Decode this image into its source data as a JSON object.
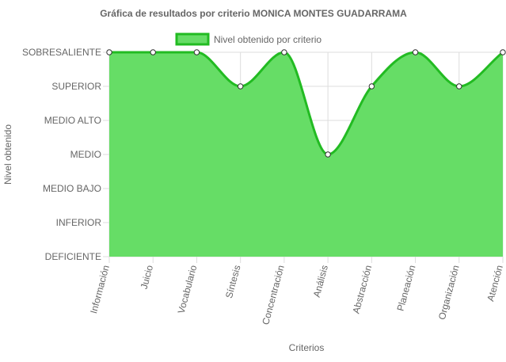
{
  "chart_data": {
    "type": "area",
    "title": "Gráfica de resultados por criterio MONICA MONTES GUADARRAMA",
    "xlabel": "Criterios",
    "ylabel": "Nivel obtenido",
    "categories": [
      "Información",
      "Juicio",
      "Vocabulario",
      "Síntesis",
      "Concentración",
      "Análisis",
      "Abstracción",
      "Planeación",
      "Organización",
      "Atención"
    ],
    "levels": [
      "DEFICIENTE",
      "INFERIOR",
      "MEDIO BAJO",
      "MEDIO",
      "MEDIO ALTO",
      "SUPERIOR",
      "SOBRESALIENTE"
    ],
    "ylim": [
      0,
      6
    ],
    "series": [
      {
        "name": "Nivel obtenido por criterio",
        "values": [
          6,
          6,
          6,
          5,
          6,
          3,
          5,
          6,
          5,
          6
        ],
        "value_labels": [
          "SOBRESALIENTE",
          "SOBRESALIENTE",
          "SOBRESALIENTE",
          "SUPERIOR",
          "SOBRESALIENTE",
          "MEDIO",
          "SUPERIOR",
          "SOBRESALIENTE",
          "SUPERIOR",
          "SOBRESALIENTE"
        ]
      }
    ],
    "legend_position": "top",
    "grid": true,
    "colors": {
      "fill": "#66dd66",
      "line": "#22bb22",
      "grid": "#dddddd",
      "point": "#ffffff"
    }
  }
}
